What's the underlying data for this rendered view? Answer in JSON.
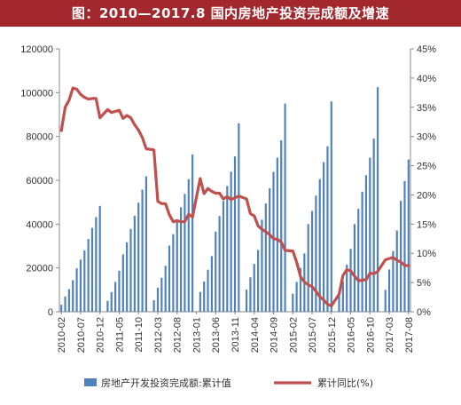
{
  "title": "图：2010—2017.8 国内房地产投资完成额及增速",
  "colors": {
    "title_bg": "#a3282d",
    "bars": "#4f81bd",
    "line": "#c0504d",
    "axis": "#888888"
  },
  "chart_data": {
    "type": "bar+line",
    "title": "图：2010—2017.8 国内房地产投资完成额及增速",
    "ylim_left": [
      0,
      120000
    ],
    "ylim_right": [
      0,
      45
    ],
    "yticks_left": [
      "0",
      "20000",
      "40000",
      "60000",
      "80000",
      "100000",
      "120000"
    ],
    "yticks_right": [
      "0%",
      "5%",
      "10%",
      "15%",
      "20%",
      "25%",
      "30%",
      "35%",
      "40%",
      "45%"
    ],
    "xtick_labels": [
      "2010-02",
      "2010-07",
      "2010-12",
      "2011-05",
      "2011-10",
      "2012-03",
      "2012-08",
      "2013-01",
      "2013-06",
      "2013-11",
      "2014-04",
      "2014-09",
      "2015-02",
      "2015-07",
      "2015-12",
      "2016-05",
      "2016-10",
      "2017-03",
      "2017-08"
    ],
    "x": [
      "2010-02",
      "2010-03",
      "2010-04",
      "2010-05",
      "2010-06",
      "2010-07",
      "2010-08",
      "2010-09",
      "2010-10",
      "2010-11",
      "2010-12",
      "2011-01",
      "2011-02",
      "2011-03",
      "2011-04",
      "2011-05",
      "2011-06",
      "2011-07",
      "2011-08",
      "2011-09",
      "2011-10",
      "2011-11",
      "2011-12",
      "2012-01",
      "2012-02",
      "2012-03",
      "2012-04",
      "2012-05",
      "2012-06",
      "2012-07",
      "2012-08",
      "2012-09",
      "2012-10",
      "2012-11",
      "2012-12",
      "2013-01",
      "2013-02",
      "2013-03",
      "2013-04",
      "2013-05",
      "2013-06",
      "2013-07",
      "2013-08",
      "2013-09",
      "2013-10",
      "2013-11",
      "2013-12",
      "2014-01",
      "2014-02",
      "2014-03",
      "2014-04",
      "2014-05",
      "2014-06",
      "2014-07",
      "2014-08",
      "2014-09",
      "2014-10",
      "2014-11",
      "2014-12",
      "2015-01",
      "2015-02",
      "2015-03",
      "2015-04",
      "2015-05",
      "2015-06",
      "2015-07",
      "2015-08",
      "2015-09",
      "2015-10",
      "2015-11",
      "2015-12",
      "2016-01",
      "2016-02",
      "2016-03",
      "2016-04",
      "2016-05",
      "2016-06",
      "2016-07",
      "2016-08",
      "2016-09",
      "2016-10",
      "2016-11",
      "2016-12",
      "2017-01",
      "2017-02",
      "2017-03",
      "2017-04",
      "2017-05",
      "2017-06",
      "2017-07",
      "2017-08"
    ],
    "series": [
      {
        "name": "房地产开发投资完成额:累计值",
        "type": "bar",
        "axis": "left",
        "values": [
          3200,
          7000,
          10300,
          14400,
          19800,
          23800,
          28000,
          33200,
          38300,
          43200,
          48300,
          null,
          5000,
          9000,
          13600,
          18700,
          26200,
          31700,
          37800,
          43800,
          49800,
          55700,
          61800,
          null,
          5300,
          11000,
          15500,
          21000,
          30200,
          35400,
          41300,
          47700,
          53800,
          60500,
          71800,
          null,
          9000,
          13800,
          19200,
          25400,
          36600,
          43700,
          50600,
          57400,
          63900,
          70900,
          86000,
          null,
          10100,
          15700,
          21800,
          28200,
          42000,
          49400,
          56400,
          63800,
          70300,
          78200,
          95000,
          null,
          8200,
          13600,
          20000,
          26600,
          40000,
          46000,
          53000,
          60500,
          68300,
          75500,
          96000,
          null,
          9000,
          13900,
          21500,
          28700,
          40000,
          47000,
          54800,
          62300,
          70300,
          79000,
          102500,
          null,
          10000,
          19300,
          27700,
          37100,
          50600,
          59700,
          69500
        ]
      },
      {
        "name": "累计同比(%)",
        "type": "line",
        "axis": "right",
        "values": [
          31.0,
          35.0,
          36.2,
          38.3,
          38.1,
          37.2,
          36.7,
          36.4,
          36.5,
          36.5,
          33.2,
          null,
          34.6,
          34.1,
          34.3,
          34.5,
          33.1,
          33.6,
          33.2,
          32.0,
          31.1,
          29.8,
          27.9,
          null,
          27.7,
          18.9,
          18.5,
          18.5,
          16.6,
          15.4,
          15.6,
          15.4,
          15.4,
          16.7,
          16.2,
          null,
          22.8,
          20.2,
          21.1,
          20.6,
          20.3,
          20.3,
          19.3,
          19.7,
          19.2,
          19.5,
          19.8,
          null,
          19.3,
          16.8,
          16.4,
          14.7,
          14.1,
          13.7,
          13.2,
          12.5,
          12.4,
          11.9,
          10.5,
          null,
          10.4,
          8.5,
          6.0,
          5.1,
          4.6,
          4.3,
          3.5,
          2.6,
          2.0,
          1.3,
          1.0,
          null,
          3.0,
          6.2,
          7.2,
          7.0,
          6.1,
          5.3,
          5.4,
          5.5,
          6.6,
          6.5,
          6.9,
          null,
          8.9,
          9.1,
          9.3,
          8.8,
          8.5,
          7.9,
          7.9
        ]
      }
    ],
    "legend": [
      {
        "label": "房地产开发投资完成额:累计值",
        "kind": "bar"
      },
      {
        "label": "累计同比(%)",
        "kind": "line"
      }
    ],
    "legend_position": "bottom",
    "grid": false
  }
}
